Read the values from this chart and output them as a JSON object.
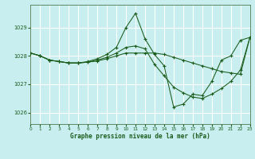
{
  "title": "Graphe pression niveau de la mer (hPa)",
  "bg_color": "#c8eef0",
  "grid_color": "#ffffff",
  "line_color": "#1a5c1a",
  "spine_color": "#4a7a4a",
  "xlim": [
    0,
    23
  ],
  "ylim": [
    1025.6,
    1029.8
  ],
  "yticks": [
    1026,
    1027,
    1028,
    1029
  ],
  "xticks": [
    0,
    1,
    2,
    3,
    4,
    5,
    6,
    7,
    8,
    9,
    10,
    11,
    12,
    13,
    14,
    15,
    16,
    17,
    18,
    19,
    20,
    21,
    22,
    23
  ],
  "s1_x": [
    0,
    1,
    2,
    3,
    4,
    5,
    6,
    7,
    8,
    9,
    10,
    11,
    12,
    13,
    14,
    15,
    16,
    17,
    18,
    19,
    20,
    21,
    22,
    23
  ],
  "s1_y": [
    1028.1,
    1028.0,
    1027.85,
    1027.8,
    1027.75,
    1027.75,
    1027.8,
    1027.9,
    1028.05,
    1028.3,
    1029.0,
    1029.5,
    1028.6,
    1028.05,
    1027.65,
    1026.2,
    1026.3,
    1026.65,
    1026.6,
    1027.1,
    1027.85,
    1028.0,
    1028.55,
    1028.65
  ],
  "s2_x": [
    0,
    1,
    2,
    3,
    4,
    5,
    6,
    7,
    8,
    9,
    10,
    11,
    12,
    13,
    14,
    15,
    16,
    17,
    18,
    19,
    20,
    21,
    22,
    23
  ],
  "s2_y": [
    1028.1,
    1028.0,
    1027.85,
    1027.8,
    1027.75,
    1027.75,
    1027.78,
    1027.82,
    1027.9,
    1028.0,
    1028.1,
    1028.1,
    1028.1,
    1028.1,
    1028.05,
    1027.95,
    1027.85,
    1027.75,
    1027.65,
    1027.55,
    1027.45,
    1027.4,
    1027.35,
    1028.65
  ],
  "s3_x": [
    0,
    1,
    2,
    3,
    4,
    5,
    6,
    7,
    8,
    9,
    10,
    11,
    12,
    13,
    14,
    15,
    16,
    17,
    18,
    19,
    20,
    21,
    22,
    23
  ],
  "s3_y": [
    1028.1,
    1028.0,
    1027.85,
    1027.8,
    1027.75,
    1027.75,
    1027.78,
    1027.85,
    1027.95,
    1028.1,
    1028.3,
    1028.35,
    1028.25,
    1027.7,
    1027.3,
    1026.9,
    1026.7,
    1026.55,
    1026.5,
    1026.65,
    1026.85,
    1027.1,
    1027.5,
    1028.65
  ]
}
